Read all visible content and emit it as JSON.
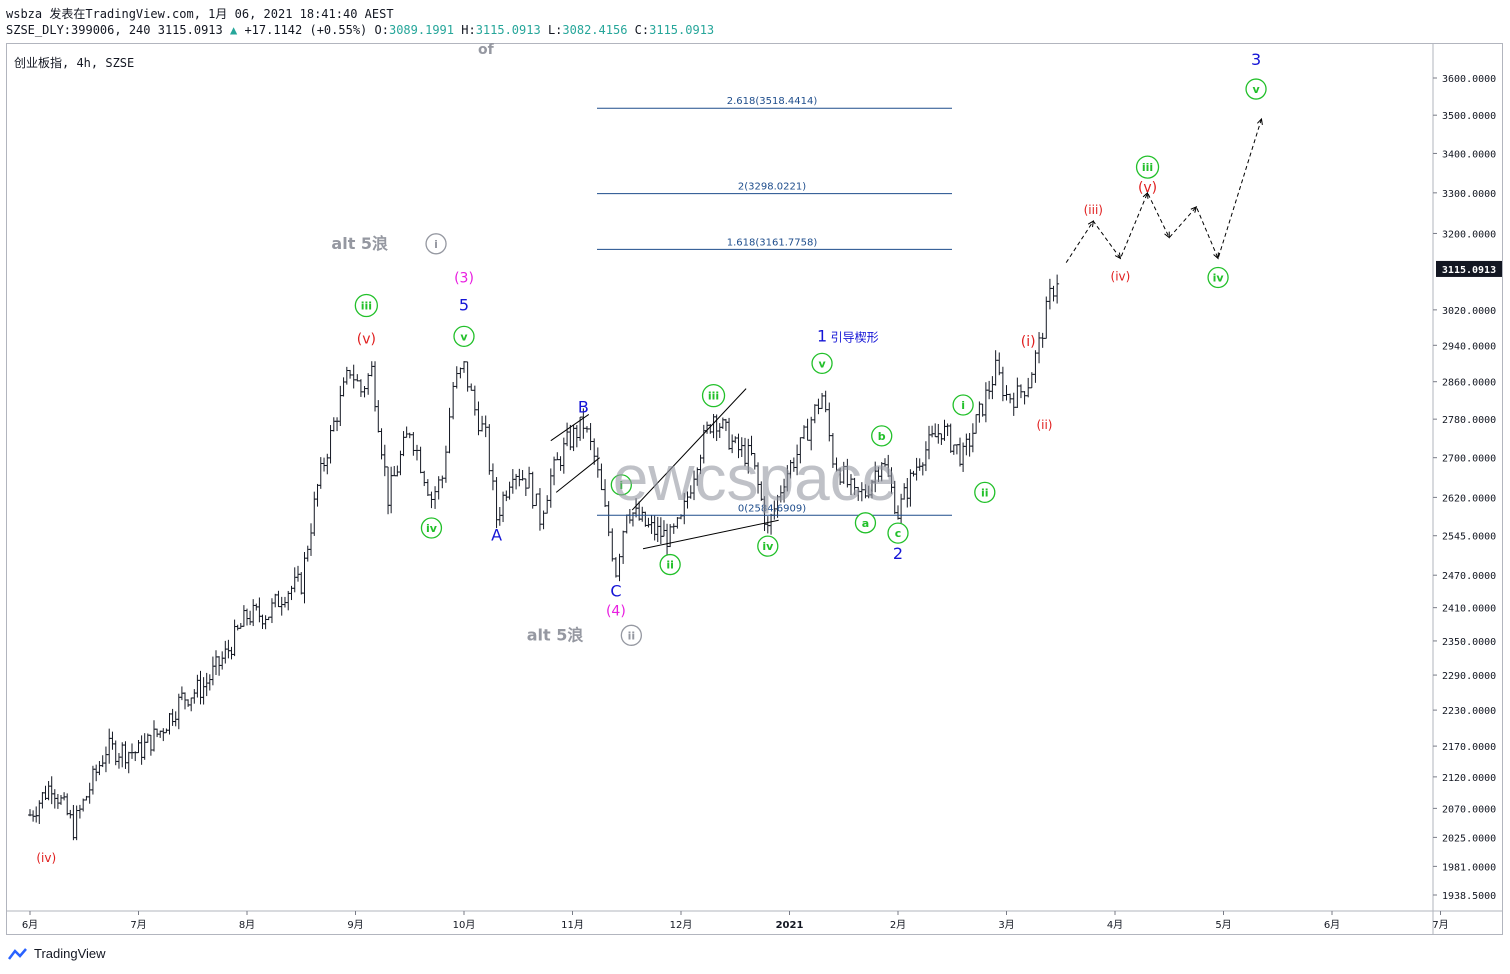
{
  "header": {
    "line1": "wsbza 发表在TradingView.com, 1月 06, 2021 18:41:40 AEST",
    "symbol_prefix": "SZSE_DLY:399006, 240 3115.0913",
    "change": "+17.1142 (+0.55%)",
    "o_label": "O:",
    "o_value": "3089.1991",
    "h_label": "H:",
    "h_value": "3115.0913",
    "l_label": "L:",
    "l_value": "3082.4156",
    "c_label": "C:",
    "c_value": "3115.0913"
  },
  "symbol_title": "创业板指, 4h, SZSE",
  "ghost_text": "of",
  "watermark": "ewcspace",
  "footer_brand": "TradingView",
  "price_badge": "3115.0913",
  "colors": {
    "candle": "#131722",
    "fib": "#1e4d8c",
    "green_label": "#22c02a",
    "red_label": "#e01e1e",
    "blue_label": "#1515d6",
    "magenta_label": "#e81ee0",
    "grey_label": "#9598a1",
    "badge_bg": "#131722"
  },
  "chart_data": {
    "type": "candlestick",
    "timeframe": "4h",
    "x_tick_labels": [
      "6月",
      "7月",
      "8月",
      "9月",
      "10月",
      "11月",
      "12月",
      "2021",
      "2月",
      "3月",
      "4月",
      "5月",
      "6月",
      "7月"
    ],
    "y_tick_labels": [
      "3600.0000",
      "3500.0000",
      "3400.0000",
      "3300.0000",
      "3200.0000",
      "3115.0913",
      "3020.0000",
      "2940.0000",
      "2860.0000",
      "2780.0000",
      "2700.0000",
      "2620.0000",
      "2545.0000",
      "2470.0000",
      "2410.0000",
      "2350.0000",
      "2290.0000",
      "2230.0000",
      "2170.0000",
      "2120.0000",
      "2070.0000",
      "2025.0000",
      "1981.0000",
      "1938.5000"
    ],
    "y_scale": "log",
    "price_path": [
      [
        0,
        2060
      ],
      [
        0.2,
        2110
      ],
      [
        0.4,
        2040
      ],
      [
        0.7,
        2165
      ],
      [
        1,
        2160
      ],
      [
        1.2,
        2195
      ],
      [
        1.4,
        2250
      ],
      [
        1.6,
        2270
      ],
      [
        1.8,
        2325
      ],
      [
        2,
        2395
      ],
      [
        2.2,
        2400
      ],
      [
        2.35,
        2440
      ],
      [
        2.5,
        2455
      ],
      [
        2.65,
        2640
      ],
      [
        2.8,
        2770
      ],
      [
        2.95,
        2888
      ],
      [
        3.05,
        2840
      ],
      [
        3.15,
        2885
      ],
      [
        3.3,
        2620
      ],
      [
        3.5,
        2760
      ],
      [
        3.6,
        2690
      ],
      [
        3.7,
        2620
      ],
      [
        3.8,
        2660
      ],
      [
        3.9,
        2850
      ],
      [
        4.0,
        2890
      ],
      [
        4.1,
        2800
      ],
      [
        4.2,
        2740
      ],
      [
        4.3,
        2580
      ],
      [
        4.45,
        2680
      ],
      [
        4.6,
        2650
      ],
      [
        4.7,
        2580
      ],
      [
        4.8,
        2660
      ],
      [
        4.95,
        2730
      ],
      [
        5.1,
        2770
      ],
      [
        5.2,
        2700
      ],
      [
        5.3,
        2590
      ],
      [
        5.4,
        2480
      ],
      [
        5.5,
        2600
      ],
      [
        5.7,
        2560
      ],
      [
        5.9,
        2540
      ],
      [
        6.0,
        2570
      ],
      [
        6.15,
        2700
      ],
      [
        6.3,
        2790
      ],
      [
        6.5,
        2720
      ],
      [
        6.65,
        2700
      ],
      [
        6.8,
        2555
      ],
      [
        6.95,
        2660
      ],
      [
        7.1,
        2720
      ],
      [
        7.2,
        2780
      ],
      [
        7.3,
        2830
      ],
      [
        7.4,
        2700
      ],
      [
        7.5,
        2660
      ],
      [
        7.6,
        2620
      ],
      [
        7.7,
        2630
      ],
      [
        7.85,
        2700
      ],
      [
        8.0,
        2590
      ],
      [
        8.2,
        2700
      ],
      [
        8.4,
        2760
      ],
      [
        8.6,
        2700
      ],
      [
        8.75,
        2790
      ],
      [
        8.9,
        2885
      ],
      [
        9.0,
        2830
      ],
      [
        9.1,
        2830
      ],
      [
        9.2,
        2860
      ],
      [
        9.3,
        2940
      ],
      [
        9.4,
        3050
      ],
      [
        9.5,
        3115
      ]
    ],
    "fib_levels": [
      {
        "label": "2.618(3518.4414)",
        "value": 3518.4414
      },
      {
        "label": "2(3298.0221)",
        "value": 3298.0221
      },
      {
        "label": "1.618(3161.7758)",
        "value": 3161.7758
      },
      {
        "label": "0(2584.6909)",
        "value": 2584.6909
      }
    ],
    "projection_path": [
      [
        9.55,
        3130
      ],
      [
        9.8,
        3230
      ],
      [
        10.05,
        3140
      ],
      [
        10.3,
        3300
      ],
      [
        10.5,
        3190
      ],
      [
        10.75,
        3265
      ],
      [
        10.95,
        3140
      ],
      [
        11.35,
        3490
      ]
    ],
    "wave_labels": [
      {
        "text": "(iv)",
        "color": "red",
        "style": "plain",
        "t": 0.15,
        "p": 1995
      },
      {
        "text": "iii",
        "color": "green",
        "style": "circle",
        "t": 3.1,
        "p": 3030
      },
      {
        "text": "(v)",
        "color": "red",
        "style": "plain",
        "t": 3.1,
        "p": 2955
      },
      {
        "text": "iv",
        "color": "green",
        "style": "circle",
        "t": 3.7,
        "p": 2560
      },
      {
        "text": "alt 5浪",
        "color": "grey",
        "style": "plain",
        "t": 3.3,
        "p": 3175
      },
      {
        "text": "i",
        "color": "grey",
        "style": "circle",
        "t": 3.3,
        "p": 3175
      },
      {
        "text": "(3)",
        "color": "magenta",
        "style": "plain",
        "t": 4.0,
        "p": 3095
      },
      {
        "text": "5",
        "color": "blue",
        "style": "plain",
        "t": 4.0,
        "p": 3030
      },
      {
        "text": "v",
        "color": "green",
        "style": "circle",
        "t": 4.0,
        "p": 2960
      },
      {
        "text": "A",
        "color": "blue",
        "style": "plain",
        "t": 4.3,
        "p": 2545
      },
      {
        "text": "B",
        "color": "blue",
        "style": "plain",
        "t": 5.1,
        "p": 2805
      },
      {
        "text": "C",
        "color": "blue",
        "style": "plain",
        "t": 5.4,
        "p": 2440
      },
      {
        "text": "(4)",
        "color": "magenta",
        "style": "plain",
        "t": 5.4,
        "p": 2405
      },
      {
        "text": "alt 5浪",
        "color": "grey",
        "style": "plain",
        "t": 5.1,
        "p": 2360
      },
      {
        "text": "ii",
        "color": "grey",
        "style": "circle",
        "t": 5.1,
        "p": 2360
      },
      {
        "text": "i",
        "color": "green",
        "style": "circle",
        "t": 5.45,
        "p": 2645
      },
      {
        "text": "ii",
        "color": "green",
        "style": "circle",
        "t": 5.9,
        "p": 2490
      },
      {
        "text": "iii",
        "color": "green",
        "style": "circle",
        "t": 6.3,
        "p": 2830
      },
      {
        "text": "iv",
        "color": "green",
        "style": "circle",
        "t": 6.8,
        "p": 2525
      },
      {
        "text": "1",
        "color": "blue",
        "style": "plain",
        "t": 7.3,
        "p": 2960
      },
      {
        "text": "引导楔形",
        "color": "blue",
        "style": "plain",
        "t": 7.6,
        "p": 2960
      },
      {
        "text": "v",
        "color": "green",
        "style": "circle",
        "t": 7.3,
        "p": 2900
      },
      {
        "text": "b",
        "color": "green",
        "style": "circle",
        "t": 7.85,
        "p": 2745
      },
      {
        "text": "a",
        "color": "green",
        "style": "circle",
        "t": 7.7,
        "p": 2570
      },
      {
        "text": "c",
        "color": "green",
        "style": "circle",
        "t": 8.0,
        "p": 2550
      },
      {
        "text": "2",
        "color": "blue",
        "style": "plain",
        "t": 8.0,
        "p": 2510
      },
      {
        "text": "i",
        "color": "green",
        "style": "circle",
        "t": 8.6,
        "p": 2810
      },
      {
        "text": "ii",
        "color": "green",
        "style": "circle",
        "t": 8.8,
        "p": 2630
      },
      {
        "text": "(i)",
        "color": "red",
        "style": "plain",
        "t": 9.2,
        "p": 2950
      },
      {
        "text": "(ii)",
        "color": "red",
        "style": "plain",
        "t": 9.35,
        "p": 2770
      },
      {
        "text": "(iii)",
        "color": "red",
        "style": "plain",
        "t": 9.8,
        "p": 3260
      },
      {
        "text": "(iv)",
        "color": "red",
        "style": "plain",
        "t": 10.05,
        "p": 3100
      },
      {
        "text": "iii",
        "color": "green",
        "style": "circle",
        "t": 10.3,
        "p": 3365
      },
      {
        "text": "(v)",
        "color": "red",
        "style": "plain",
        "t": 10.3,
        "p": 3315
      },
      {
        "text": "iv",
        "color": "green",
        "style": "circle",
        "t": 10.95,
        "p": 3095
      },
      {
        "text": "3",
        "color": "blue",
        "style": "plain",
        "t": 11.3,
        "p": 3650
      },
      {
        "text": "v",
        "color": "green",
        "style": "circle",
        "t": 11.3,
        "p": 3570
      }
    ]
  }
}
